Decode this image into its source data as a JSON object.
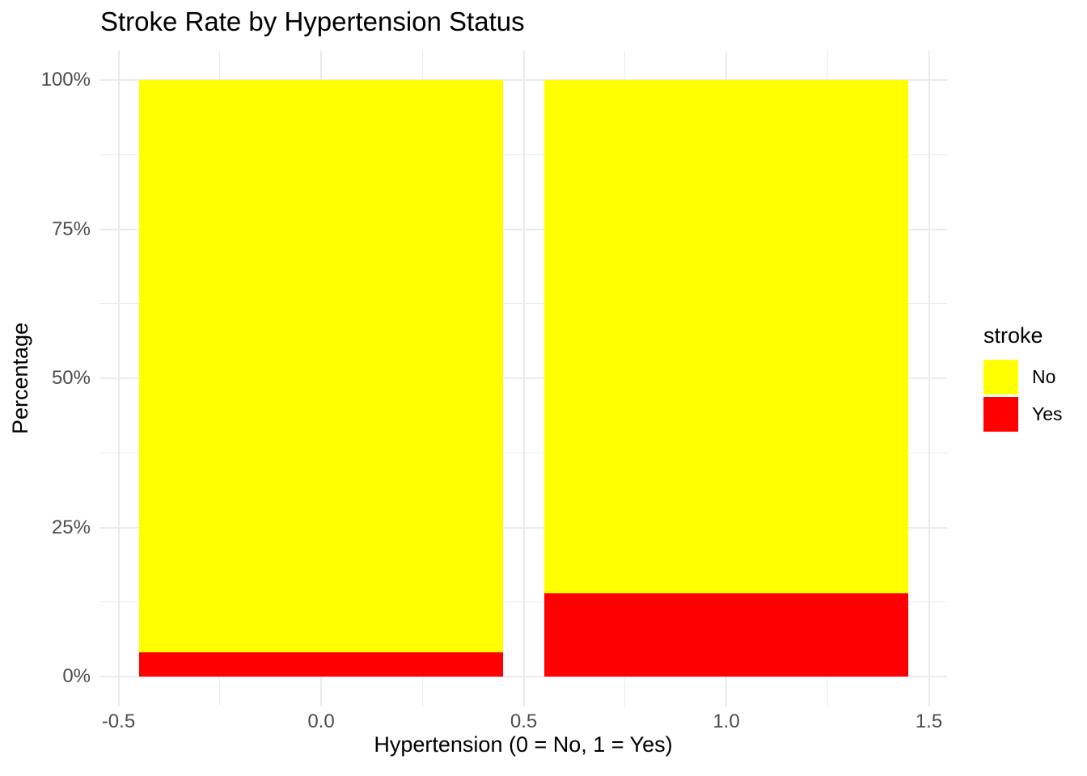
{
  "chart_data": {
    "type": "bar",
    "stacked": true,
    "percent_scale": true,
    "title": "Stroke Rate by Hypertension Status",
    "xlabel": "Hypertension (0 = No, 1 = Yes)",
    "ylabel": "Percentage",
    "categories": [
      0,
      1
    ],
    "bar_width": 0.9,
    "series": [
      {
        "name": "Yes",
        "color": "#ff0000",
        "values": [
          4.1,
          13.9
        ]
      },
      {
        "name": "No",
        "color": "#ffff00",
        "values": [
          95.9,
          86.1
        ]
      }
    ],
    "series_order_note": "bottom-to-top of stack",
    "x_ticks": {
      "values": [
        -0.5,
        0,
        0.5,
        1,
        1.5
      ],
      "labels": [
        "-0.5",
        "0.0",
        "0.5",
        "1.0",
        "1.5"
      ]
    },
    "y_ticks": {
      "values": [
        0,
        25,
        50,
        75,
        100
      ],
      "labels": [
        "0%",
        "25%",
        "50%",
        "75%",
        "100%"
      ]
    },
    "x_minor": [
      -0.25,
      0.25,
      0.75,
      1.25
    ],
    "y_minor": [
      12.5,
      37.5,
      62.5,
      87.5
    ],
    "xlim": [
      -0.545,
      1.545
    ],
    "ylim": [
      -5,
      105
    ],
    "grid": "major+minor",
    "legend": {
      "title": "stroke",
      "position": "right",
      "entries": [
        {
          "label": "No",
          "color": "#ffff00"
        },
        {
          "label": "Yes",
          "color": "#ff0000"
        }
      ]
    },
    "colors": {
      "background": "#ffffff",
      "grid": "#ebebeb",
      "axis_text": "#4d4d4d",
      "text": "#000000",
      "bar_no": "#ffff00",
      "bar_yes": "#ff0000"
    }
  }
}
